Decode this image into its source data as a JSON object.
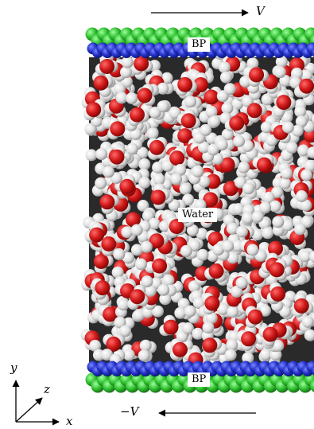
{
  "labels": {
    "top_plate": "BP",
    "bottom_plate": "BP",
    "middle": "Water"
  },
  "velocity": {
    "top": "V",
    "bottom": "−V"
  },
  "axes": {
    "x": "x",
    "y": "y",
    "z": "z"
  },
  "colors": {
    "plate_outer": "#2fbf2f",
    "plate_inner": "#2230c8",
    "oxygen": "#d01818",
    "hydrogen": "#e2e2e2",
    "background": "#ffffff"
  }
}
